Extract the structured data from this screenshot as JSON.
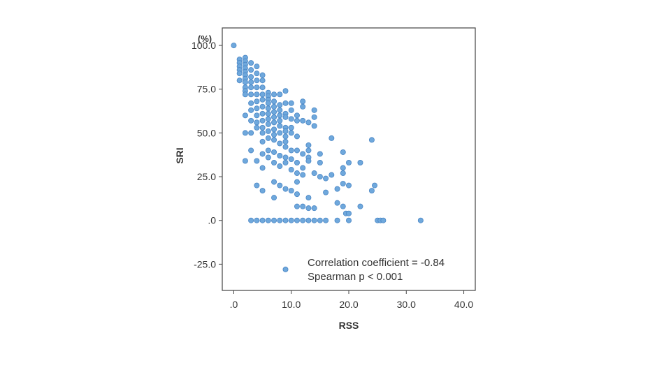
{
  "chart_data": {
    "type": "scatter",
    "xlabel": "RSS",
    "ylabel": "SRI",
    "y_unit": "(%)",
    "xlim": [
      -2,
      42
    ],
    "ylim": [
      -40,
      110
    ],
    "x_ticks": [
      0,
      10,
      20,
      30,
      40
    ],
    "x_tick_labels": [
      ".0",
      "10.0",
      "20.0",
      "30.0",
      "40.0"
    ],
    "y_ticks": [
      100,
      75,
      50,
      25,
      0,
      -25
    ],
    "y_tick_labels": [
      "100.0",
      "75.0",
      "50.0",
      "25.0",
      ".0",
      "-25.0"
    ],
    "grid": false,
    "marker_color": "#6fa8dc",
    "marker_edge": "#4a86c5",
    "annotation": {
      "marker_x": 9,
      "marker_y": -28,
      "lines": [
        "Correlation coefficient = -0.84",
        "Spearman p < 0.001"
      ]
    },
    "points": [
      [
        0,
        100
      ],
      [
        1,
        92
      ],
      [
        1,
        90
      ],
      [
        1,
        88
      ],
      [
        1,
        86
      ],
      [
        1,
        84
      ],
      [
        1,
        80
      ],
      [
        2,
        93
      ],
      [
        2,
        91
      ],
      [
        2,
        89
      ],
      [
        2,
        87
      ],
      [
        2,
        85
      ],
      [
        2,
        83
      ],
      [
        2,
        81
      ],
      [
        2,
        79
      ],
      [
        2,
        76
      ],
      [
        2,
        74
      ],
      [
        2,
        72
      ],
      [
        2,
        60
      ],
      [
        2,
        50
      ],
      [
        2,
        34
      ],
      [
        3,
        90
      ],
      [
        3,
        86
      ],
      [
        3,
        82
      ],
      [
        3,
        79
      ],
      [
        3,
        76
      ],
      [
        3,
        72
      ],
      [
        3,
        67
      ],
      [
        3,
        63
      ],
      [
        3,
        57
      ],
      [
        3,
        50
      ],
      [
        3,
        40
      ],
      [
        3,
        0
      ],
      [
        4,
        88
      ],
      [
        4,
        84
      ],
      [
        4,
        80
      ],
      [
        4,
        76
      ],
      [
        4,
        72
      ],
      [
        4,
        68
      ],
      [
        4,
        64
      ],
      [
        4,
        60
      ],
      [
        4,
        56
      ],
      [
        4,
        53
      ],
      [
        4,
        34
      ],
      [
        4,
        20
      ],
      [
        4,
        0
      ],
      [
        5,
        83
      ],
      [
        5,
        80
      ],
      [
        5,
        76
      ],
      [
        5,
        72
      ],
      [
        5,
        69
      ],
      [
        5,
        65
      ],
      [
        5,
        61
      ],
      [
        5,
        57
      ],
      [
        5,
        53
      ],
      [
        5,
        50
      ],
      [
        5,
        45
      ],
      [
        5,
        38
      ],
      [
        5,
        30
      ],
      [
        5,
        17
      ],
      [
        5,
        0
      ],
      [
        6,
        73
      ],
      [
        6,
        71
      ],
      [
        6,
        69
      ],
      [
        6,
        67
      ],
      [
        6,
        64
      ],
      [
        6,
        61
      ],
      [
        6,
        58
      ],
      [
        6,
        55
      ],
      [
        6,
        51
      ],
      [
        6,
        47
      ],
      [
        6,
        40
      ],
      [
        6,
        36
      ],
      [
        6,
        0
      ],
      [
        7,
        72
      ],
      [
        7,
        68
      ],
      [
        7,
        65
      ],
      [
        7,
        62
      ],
      [
        7,
        59
      ],
      [
        7,
        56
      ],
      [
        7,
        52
      ],
      [
        7,
        49
      ],
      [
        7,
        46
      ],
      [
        7,
        39
      ],
      [
        7,
        33
      ],
      [
        7,
        22
      ],
      [
        7,
        13
      ],
      [
        7,
        0
      ],
      [
        8,
        72
      ],
      [
        8,
        66
      ],
      [
        8,
        63
      ],
      [
        8,
        60
      ],
      [
        8,
        57
      ],
      [
        8,
        54
      ],
      [
        8,
        50
      ],
      [
        8,
        44
      ],
      [
        8,
        37
      ],
      [
        8,
        31
      ],
      [
        8,
        20
      ],
      [
        8,
        0
      ],
      [
        9,
        74
      ],
      [
        9,
        67
      ],
      [
        9,
        61
      ],
      [
        9,
        59
      ],
      [
        9,
        53
      ],
      [
        9,
        51
      ],
      [
        9,
        48
      ],
      [
        9,
        45
      ],
      [
        9,
        42
      ],
      [
        9,
        36
      ],
      [
        9,
        33
      ],
      [
        9,
        18
      ],
      [
        9,
        0
      ],
      [
        10,
        67
      ],
      [
        10,
        63
      ],
      [
        10,
        58
      ],
      [
        10,
        53
      ],
      [
        10,
        50
      ],
      [
        10,
        40
      ],
      [
        10,
        35
      ],
      [
        10,
        29
      ],
      [
        10,
        17
      ],
      [
        10,
        0
      ],
      [
        11,
        60
      ],
      [
        11,
        57
      ],
      [
        11,
        48
      ],
      [
        11,
        40
      ],
      [
        11,
        33
      ],
      [
        11,
        27
      ],
      [
        11,
        22
      ],
      [
        11,
        15
      ],
      [
        11,
        8
      ],
      [
        11,
        0
      ],
      [
        12,
        68
      ],
      [
        12,
        65
      ],
      [
        12,
        57
      ],
      [
        12,
        38
      ],
      [
        12,
        30
      ],
      [
        12,
        26
      ],
      [
        12,
        8
      ],
      [
        12,
        0
      ],
      [
        13,
        56
      ],
      [
        13,
        43
      ],
      [
        13,
        40
      ],
      [
        13,
        36
      ],
      [
        13,
        34
      ],
      [
        13,
        13
      ],
      [
        13,
        7
      ],
      [
        13,
        0
      ],
      [
        14,
        63
      ],
      [
        14,
        59
      ],
      [
        14,
        54
      ],
      [
        14,
        27
      ],
      [
        14,
        7
      ],
      [
        14,
        0
      ],
      [
        15,
        38
      ],
      [
        15,
        33
      ],
      [
        15,
        25
      ],
      [
        15,
        0
      ],
      [
        16,
        24
      ],
      [
        16,
        16
      ],
      [
        16,
        0
      ],
      [
        17,
        47
      ],
      [
        17,
        26
      ],
      [
        18,
        0
      ],
      [
        18,
        18
      ],
      [
        18,
        10
      ],
      [
        19,
        39
      ],
      [
        19,
        30
      ],
      [
        19,
        27
      ],
      [
        19,
        21
      ],
      [
        19,
        8
      ],
      [
        19.5,
        4
      ],
      [
        20,
        33
      ],
      [
        20,
        20
      ],
      [
        20,
        4
      ],
      [
        20,
        0
      ],
      [
        22,
        33
      ],
      [
        22,
        8
      ],
      [
        24,
        46
      ],
      [
        24,
        17
      ],
      [
        24.5,
        20
      ],
      [
        25,
        0
      ],
      [
        25.5,
        0
      ],
      [
        26,
        0
      ],
      [
        32.5,
        0
      ]
    ]
  }
}
